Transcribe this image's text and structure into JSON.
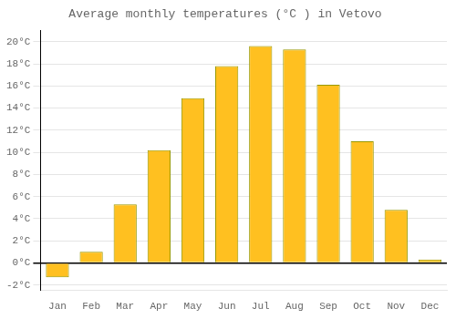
{
  "chart_data": {
    "type": "bar",
    "title": "Average monthly temperatures (°C ) in Vetovo",
    "categories": [
      "Jan",
      "Feb",
      "Mar",
      "Apr",
      "May",
      "Jun",
      "Jul",
      "Aug",
      "Sep",
      "Oct",
      "Nov",
      "Dec"
    ],
    "values": [
      -1.3,
      1.0,
      5.3,
      10.2,
      14.9,
      17.8,
      19.6,
      19.3,
      16.1,
      11.0,
      4.8,
      0.3
    ],
    "color": "#FFC020",
    "ylim": [
      -2.5,
      21
    ],
    "yticks": [
      {
        "value": -2,
        "label": "-2°C"
      },
      {
        "value": 0,
        "label": "0°C"
      },
      {
        "value": 2,
        "label": "2°C"
      },
      {
        "value": 4,
        "label": "4°C"
      },
      {
        "value": 6,
        "label": "6°C"
      },
      {
        "value": 8,
        "label": "8°C"
      },
      {
        "value": 10,
        "label": "10°C"
      },
      {
        "value": 12,
        "label": "12°C"
      },
      {
        "value": 14,
        "label": "14°C"
      },
      {
        "value": 16,
        "label": "16°C"
      },
      {
        "value": 18,
        "label": "18°C"
      },
      {
        "value": 20,
        "label": "20°C"
      }
    ],
    "grid": true
  }
}
